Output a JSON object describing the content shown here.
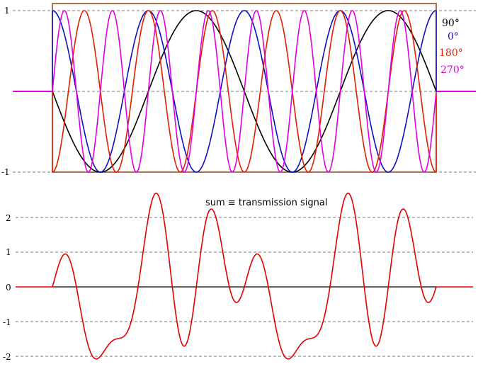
{
  "chart_data": [
    {
      "type": "line",
      "title": "",
      "xlabel": "",
      "ylabel": "",
      "x_range": [
        0,
        1
      ],
      "ylim": [
        -1,
        1
      ],
      "yticks": [
        1,
        -1
      ],
      "ytick_labels": [
        "1",
        "-1"
      ],
      "grid": true,
      "legend_position": "right",
      "frame_color": "#8B4513",
      "baseline_color": "#e000e0",
      "series": [
        {
          "name": "90°",
          "color": "#000000",
          "cycles": 2,
          "phase_deg": 90
        },
        {
          "name": "0°",
          "color": "#1010c0",
          "cycles": 4,
          "phase_deg": 0
        },
        {
          "name": "180°",
          "color": "#e02000",
          "cycles": 6,
          "phase_deg": 180
        },
        {
          "name": "270°",
          "color": "#e000e0",
          "cycles": 8,
          "phase_deg": 270
        }
      ]
    },
    {
      "type": "line",
      "title": "",
      "xlabel": "",
      "ylabel": "",
      "x_range": [
        0,
        1
      ],
      "ylim": [
        -2,
        2.5
      ],
      "yticks": [
        2,
        1,
        0,
        -1,
        -2
      ],
      "ytick_labels": [
        "2",
        "1",
        "0",
        "-1",
        "-2"
      ],
      "grid": true,
      "annotation": "sum ≡ transmission signal",
      "series": [
        {
          "name": "",
          "color": "#e00000",
          "formula": "sum of the four signals above"
        }
      ]
    }
  ]
}
